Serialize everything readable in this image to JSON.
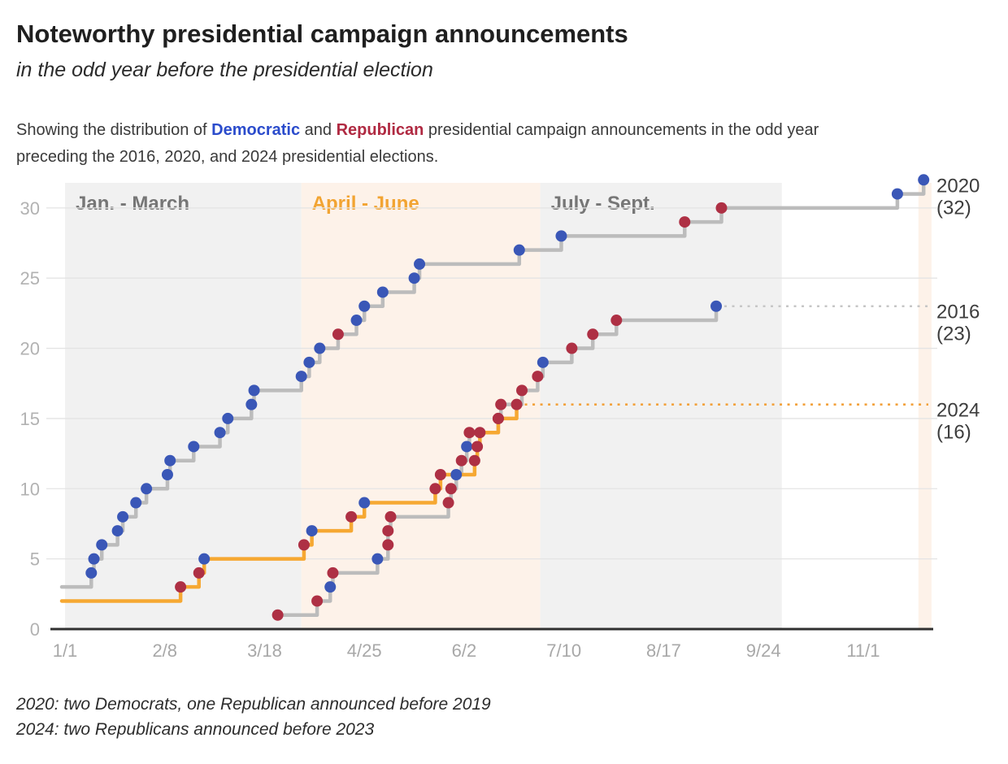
{
  "header": {
    "title": "Noteworthy presidential campaign announcements",
    "subtitle": "in the odd year before the presidential election",
    "description": {
      "prefix": "Showing the distribution of ",
      "democratic_term": "Democratic",
      "mid": " and ",
      "republican_term": "Republican",
      "suffix_line1": " presidential campaign announcements in the odd year",
      "suffix_line2": "preceding the 2016, 2020, and 2024 presidential elections.",
      "democratic_color": "#2b4ccc",
      "republican_color": "#b02a42"
    }
  },
  "footnotes": [
    "2020: two Democrats, one Republican announced before 2019",
    "2024: two Republicans announced before 2023"
  ],
  "chart_data": {
    "type": "line",
    "variant": "cumulative-step-timeline",
    "grid": true,
    "x_axis": {
      "tick_labels": [
        "1/1",
        "2/8",
        "3/18",
        "4/25",
        "6/2",
        "7/10",
        "8/17",
        "9/24",
        "11/1"
      ],
      "tick_color": "#a8a8a8",
      "axis_color": "#303030"
    },
    "y_axis": {
      "ticks": [
        0,
        5,
        10,
        15,
        20,
        25,
        30
      ],
      "max": 32,
      "tick_color": "#b2b2b2",
      "grid_color": "#e4e4e4"
    },
    "bands": [
      {
        "label": "Jan. - March",
        "start": "1/1",
        "end": "4/1",
        "fill": "#f1f1f1",
        "label_color": "#767676"
      },
      {
        "label": "April - June",
        "start": "4/1",
        "end": "7/1",
        "fill": "#fdf2e9",
        "label_color": "#f2a432"
      },
      {
        "label": "July - Sept.",
        "start": "7/1",
        "end": "10/1",
        "fill": "#f1f1f1",
        "label_color": "#767676"
      },
      {
        "label": "",
        "start": "11/22",
        "end": "11/27",
        "fill": "#fdf2e9",
        "label_color": ""
      }
    ],
    "party_colors": {
      "D": "#3a57b7",
      "R": "#ae3044"
    },
    "series": [
      {
        "name": "2016",
        "total": 23,
        "start_value": 0,
        "starts_at_left": false,
        "line_color": "#bcbcbc",
        "dotted": true,
        "dotted_color": "#c6c6c6",
        "end_label": [
          "2016",
          "(23)"
        ],
        "label_color": "#3d3d3d",
        "points": [
          [
            "3/23",
            "R"
          ],
          [
            "4/7",
            "R"
          ],
          [
            "4/12",
            "D"
          ],
          [
            "4/13",
            "R"
          ],
          [
            "4/30",
            "D"
          ],
          [
            "5/4",
            "R"
          ],
          [
            "5/4",
            "R"
          ],
          [
            "5/5",
            "R"
          ],
          [
            "5/27",
            "R"
          ],
          [
            "5/28",
            "R"
          ],
          [
            "5/30",
            "D"
          ],
          [
            "6/1",
            "R"
          ],
          [
            "6/3",
            "D"
          ],
          [
            "6/4",
            "R"
          ],
          [
            "6/15",
            "R"
          ],
          [
            "6/16",
            "R"
          ],
          [
            "6/24",
            "R"
          ],
          [
            "6/30",
            "R"
          ],
          [
            "7/2",
            "D"
          ],
          [
            "7/13",
            "R"
          ],
          [
            "7/21",
            "R"
          ],
          [
            "7/30",
            "R"
          ],
          [
            "9/6",
            "D"
          ]
        ]
      },
      {
        "name": "2020",
        "total": 32,
        "start_value": 3,
        "starts_at_left": true,
        "line_color": "#bcbcbc",
        "dotted": false,
        "dotted_color": "",
        "end_label": [
          "2020",
          "(32)"
        ],
        "label_color": "#3d3d3d",
        "points": [
          [
            "1/11",
            "D"
          ],
          [
            "1/12",
            "D"
          ],
          [
            "1/15",
            "D"
          ],
          [
            "1/21",
            "D"
          ],
          [
            "1/23",
            "D"
          ],
          [
            "1/28",
            "D"
          ],
          [
            "2/1",
            "D"
          ],
          [
            "2/9",
            "D"
          ],
          [
            "2/10",
            "D"
          ],
          [
            "2/19",
            "D"
          ],
          [
            "3/1",
            "D"
          ],
          [
            "3/4",
            "D"
          ],
          [
            "3/13",
            "D"
          ],
          [
            "3/14",
            "D"
          ],
          [
            "4/1",
            "D"
          ],
          [
            "4/4",
            "D"
          ],
          [
            "4/8",
            "D"
          ],
          [
            "4/15",
            "R"
          ],
          [
            "4/22",
            "D"
          ],
          [
            "4/25",
            "D"
          ],
          [
            "5/2",
            "D"
          ],
          [
            "5/14",
            "D"
          ],
          [
            "5/16",
            "D"
          ],
          [
            "6/23",
            "D"
          ],
          [
            "7/9",
            "D"
          ],
          [
            "8/25",
            "R"
          ],
          [
            "9/8",
            "R"
          ],
          [
            "11/14",
            "D"
          ],
          [
            "11/24",
            "D"
          ]
        ]
      },
      {
        "name": "2024",
        "total": 16,
        "start_value": 2,
        "starts_at_left": true,
        "line_color": "#f6a832",
        "dotted": true,
        "dotted_color": "#f2a13a",
        "end_label": [
          "2024",
          "(16)"
        ],
        "label_color": "#3d3d3d",
        "points": [
          [
            "2/14",
            "R"
          ],
          [
            "2/21",
            "R"
          ],
          [
            "2/23",
            "D"
          ],
          [
            "4/2",
            "R"
          ],
          [
            "4/5",
            "D"
          ],
          [
            "4/20",
            "R"
          ],
          [
            "4/25",
            "D"
          ],
          [
            "5/22",
            "R"
          ],
          [
            "5/24",
            "R"
          ],
          [
            "6/6",
            "R"
          ],
          [
            "6/7",
            "R"
          ],
          [
            "6/8",
            "R"
          ],
          [
            "6/15",
            "R"
          ],
          [
            "6/22",
            "R"
          ]
        ]
      }
    ]
  }
}
